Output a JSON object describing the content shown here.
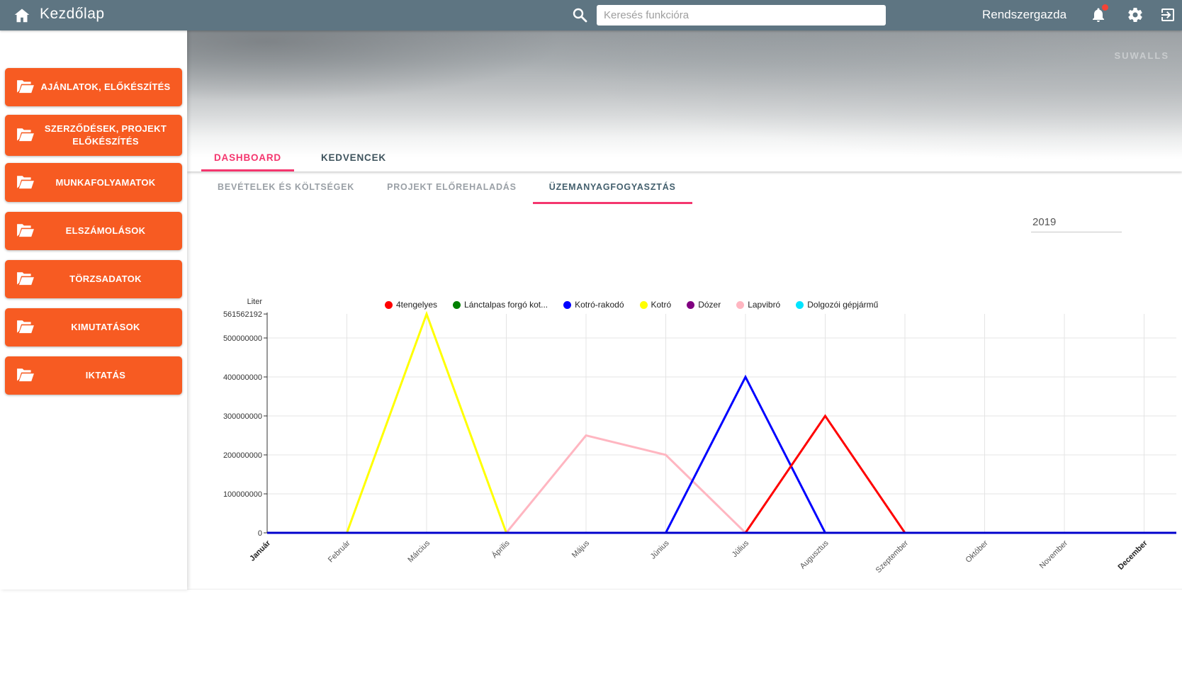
{
  "topbar": {
    "title": "Kezdőlap",
    "search_placeholder": "Keresés funkcióra",
    "user": "Rendszergazda"
  },
  "sidebar": {
    "items": [
      {
        "label": "AJÁNLATOK, ELŐKÉSZÍTÉS"
      },
      {
        "label": "SZERZŐDÉSEK, PROJEKT ELŐKÉSZÍTÉS"
      },
      {
        "label": "MUNKAFOLYAMATOK"
      },
      {
        "label": "ELSZÁMOLÁSOK"
      },
      {
        "label": "TÖRZSADATOK"
      },
      {
        "label": "KIMUTATÁSOK"
      },
      {
        "label": "IKTATÁS"
      }
    ]
  },
  "hero": {
    "watermark": "SUWALLS"
  },
  "tabs": {
    "main": [
      {
        "label": "DASHBOARD",
        "active": true
      },
      {
        "label": "KEDVENCEK",
        "active": false
      }
    ],
    "sub": [
      {
        "label": "BEVÉTELEK ÉS KÖLTSÉGEK",
        "active": false
      },
      {
        "label": "PROJEKT ELŐREHALADÁS",
        "active": false
      },
      {
        "label": "ÜZEMANYAGFOGYASZTÁS",
        "active": true
      }
    ]
  },
  "year_filter": {
    "value": "2019"
  },
  "colors": {
    "topbar": "#5e7582",
    "button_orange": "#f75b22",
    "accent_pink": "#f4366e",
    "baseline": "#0000cc"
  },
  "icons": {
    "home": "house",
    "search": "magnifier",
    "bell": "notifications",
    "gear": "settings",
    "logout": "exit",
    "folder": "folder-open",
    "hamburger": "menu"
  },
  "chart_data": {
    "type": "line",
    "ylabel": "Liter",
    "categories": [
      "Január",
      "Február",
      "Március",
      "Április",
      "Május",
      "Június",
      "Július",
      "Augusztus",
      "Szeptember",
      "Október",
      "November",
      "December"
    ],
    "bold_categories": [
      0,
      11
    ],
    "y_ticks": [
      0,
      100000000,
      200000000,
      300000000,
      400000000,
      500000000,
      561562192
    ],
    "ylim": [
      0,
      561562192
    ],
    "grid": true,
    "legend_position": "top",
    "baseline_color": "#0000cc",
    "series": [
      {
        "name": "4tengelyes",
        "color": "#ff0000",
        "values": [
          0,
          0,
          0,
          0,
          0,
          0,
          0,
          300000000,
          0,
          0,
          0,
          0
        ]
      },
      {
        "name": "Lánctalpas forgó kot...",
        "color": "#008000",
        "values": [
          0,
          0,
          0,
          0,
          0,
          0,
          0,
          0,
          0,
          0,
          0,
          0
        ]
      },
      {
        "name": "Kotró-rakodó",
        "color": "#0000ff",
        "values": [
          0,
          0,
          0,
          0,
          0,
          0,
          400000000,
          0,
          0,
          0,
          0,
          0
        ]
      },
      {
        "name": "Kotró",
        "color": "#ffff00",
        "values": [
          0,
          0,
          561562192,
          0,
          0,
          0,
          0,
          0,
          0,
          0,
          0,
          0
        ]
      },
      {
        "name": "Dózer",
        "color": "#800080",
        "values": [
          0,
          0,
          0,
          0,
          0,
          0,
          0,
          0,
          0,
          0,
          0,
          0
        ]
      },
      {
        "name": "Lapvibró",
        "color": "#ffb6c1",
        "values": [
          0,
          0,
          0,
          0,
          250000000,
          200000000,
          0,
          0,
          0,
          0,
          0,
          0
        ]
      },
      {
        "name": "Dolgozói gépjármű",
        "color": "#00e5ff",
        "values": [
          0,
          0,
          0,
          0,
          0,
          0,
          0,
          0,
          0,
          0,
          0,
          0
        ]
      }
    ]
  }
}
